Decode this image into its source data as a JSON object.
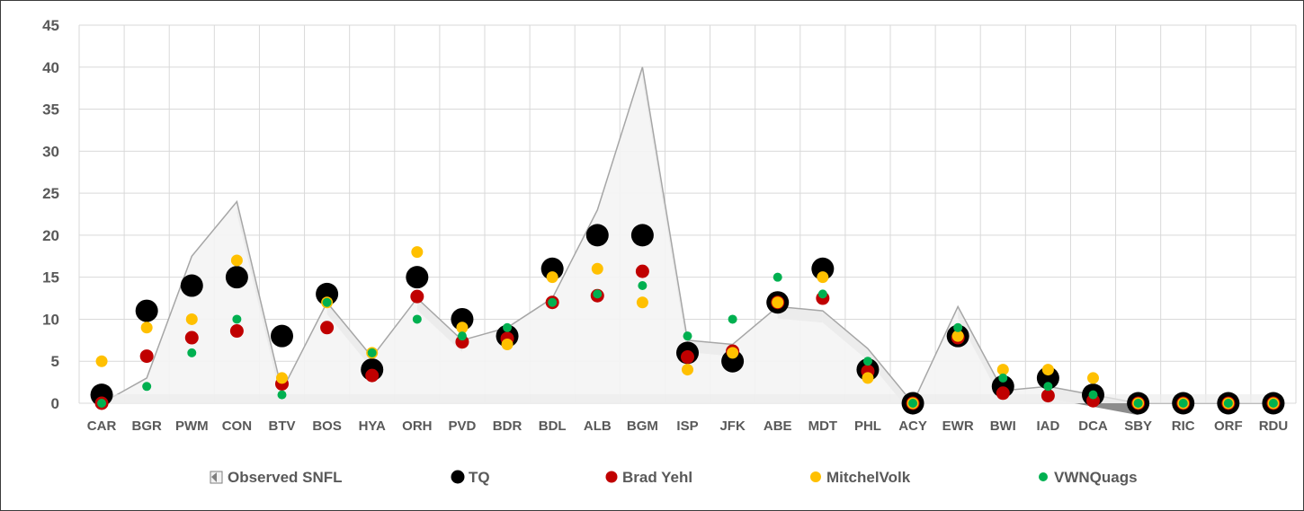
{
  "chart_data": {
    "type": "scatter",
    "categories": [
      "CAR",
      "BGR",
      "PWM",
      "CON",
      "BTV",
      "BOS",
      "HYA",
      "ORH",
      "PVD",
      "BDR",
      "BDL",
      "ALB",
      "BGM",
      "ISP",
      "JFK",
      "ABE",
      "MDT",
      "PHL",
      "ACY",
      "EWR",
      "BWI",
      "IAD",
      "DCA",
      "SBY",
      "RIC",
      "ORF",
      "RDU"
    ],
    "ylim": [
      0,
      45
    ],
    "yticks": [
      0,
      5,
      10,
      15,
      20,
      25,
      30,
      35,
      40,
      45
    ],
    "grid": true,
    "legend_position": "bottom",
    "series": [
      {
        "name": "Observed SNFL",
        "kind": "area",
        "color": "#f2f2f2",
        "values": [
          0,
          3,
          17.5,
          24,
          1.5,
          12,
          5.5,
          12.5,
          7.5,
          9,
          12.5,
          23,
          40,
          7.5,
          7,
          11.5,
          11,
          6.5,
          0,
          11.5,
          1.5,
          2,
          1,
          0,
          0,
          0,
          0
        ]
      },
      {
        "name": "TQ",
        "kind": "marker",
        "color": "#000000",
        "values": [
          1,
          11,
          14,
          15,
          8,
          13,
          4,
          15,
          10,
          8,
          16,
          20,
          20,
          6,
          5,
          12,
          16,
          4,
          0,
          8,
          2,
          3,
          1,
          0,
          0,
          0,
          0
        ]
      },
      {
        "name": "Brad Yehl",
        "kind": "marker",
        "color": "#c00000",
        "values": [
          0,
          5.6,
          7.8,
          8.6,
          2.3,
          9,
          3.3,
          12.7,
          7.3,
          7.7,
          12,
          12.8,
          15.7,
          5.5,
          6.2,
          12,
          12.5,
          3.8,
          0,
          7.8,
          1.2,
          0.9,
          0.3,
          0,
          0,
          0,
          0
        ]
      },
      {
        "name": "MitchelVolk",
        "kind": "marker",
        "color": "#ffc000",
        "values": [
          5,
          9,
          10,
          17,
          3,
          12,
          6,
          18,
          9,
          7,
          15,
          16,
          12,
          4,
          6,
          12,
          15,
          3,
          0,
          8,
          4,
          4,
          3,
          0,
          0,
          0,
          0
        ]
      },
      {
        "name": "VWNQuags",
        "kind": "marker",
        "color": "#00b050",
        "values": [
          0,
          2,
          6,
          10,
          1,
          12,
          6,
          10,
          8,
          9,
          12,
          13,
          14,
          8,
          10,
          15,
          13,
          5,
          0,
          9,
          3,
          2,
          1,
          0,
          0,
          0,
          0
        ]
      }
    ]
  }
}
